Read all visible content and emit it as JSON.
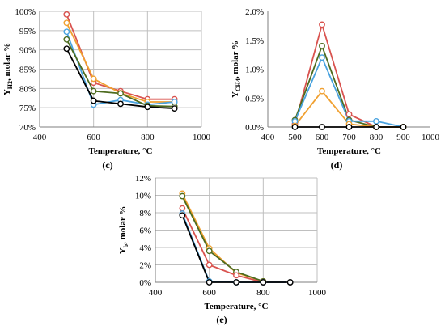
{
  "colors": {
    "red": "#d9534f",
    "orange": "#f0a030",
    "blue": "#4aa3df",
    "olive": "#4d6b1f",
    "black": "#000000"
  },
  "chart_data": [
    {
      "id": "c",
      "type": "line",
      "caption": "(c)",
      "title": "",
      "xlabel": "Temperature, °C",
      "ylabel_main": "Y",
      "ylabel_sub": "H2",
      "ylabel_rest": ", molar %",
      "xlim": [
        400,
        1000
      ],
      "ylim": [
        70,
        100
      ],
      "grid": true,
      "x_ticks": [
        "400",
        "600",
        "800",
        "1000"
      ],
      "y_ticks": [
        "70%",
        "75%",
        "80%",
        "85%",
        "90%",
        "95%",
        "100%"
      ],
      "x": [
        500,
        600,
        700,
        800,
        900
      ],
      "series": [
        {
          "color": "red",
          "values": [
            99.2,
            81.5,
            79.3,
            77.2,
            77.2
          ]
        },
        {
          "color": "orange",
          "values": [
            97.0,
            82.5,
            78.8,
            76.5,
            76.5
          ]
        },
        {
          "color": "blue",
          "values": [
            94.7,
            75.8,
            77.0,
            75.8,
            76.5
          ]
        },
        {
          "color": "olive",
          "values": [
            92.7,
            79.3,
            78.7,
            75.5,
            75.3
          ]
        },
        {
          "color": "black",
          "values": [
            90.3,
            76.8,
            76.0,
            75.2,
            74.8
          ]
        }
      ]
    },
    {
      "id": "d",
      "type": "line",
      "caption": "(d)",
      "title": "",
      "xlabel": "Temperature, °C",
      "ylabel_main": "Y",
      "ylabel_sub": "CH4",
      "ylabel_rest": ", molar %",
      "xlim": [
        400,
        1000
      ],
      "ylim": [
        0,
        2
      ],
      "grid": false,
      "x_ticks": [
        "400",
        "500",
        "600",
        "700",
        "800",
        "900",
        "1000"
      ],
      "y_ticks": [
        "0.0%",
        "0.5%",
        "1.0%",
        "1.5%",
        "2.0%"
      ],
      "x": [
        500,
        600,
        700,
        800,
        900
      ],
      "series": [
        {
          "color": "red",
          "values": [
            0.05,
            1.77,
            0.22,
            0.0,
            0.0
          ]
        },
        {
          "color": "olive",
          "values": [
            0.12,
            1.4,
            0.12,
            0.0,
            0.0
          ]
        },
        {
          "color": "blue",
          "values": [
            0.1,
            1.2,
            0.1,
            0.1,
            0.0
          ]
        },
        {
          "color": "orange",
          "values": [
            0.02,
            0.62,
            0.05,
            0.0,
            0.0
          ]
        },
        {
          "color": "black",
          "values": [
            0.0,
            0.0,
            0.0,
            0.0,
            0.0
          ]
        }
      ]
    },
    {
      "id": "e",
      "type": "line",
      "caption": "(e)",
      "title": "",
      "xlabel": "Temperature, °C",
      "ylabel_main": "Y",
      "ylabel_sub": "b",
      "ylabel_rest": ", molar %",
      "xlim": [
        400,
        1000
      ],
      "ylim": [
        0,
        12
      ],
      "grid": true,
      "x_ticks": [
        "400",
        "600",
        "800",
        "1000"
      ],
      "y_ticks": [
        "0%",
        "2%",
        "4%",
        "6%",
        "8%",
        "10%",
        "12%"
      ],
      "x": [
        500,
        600,
        700,
        800,
        900
      ],
      "series": [
        {
          "color": "orange",
          "values": [
            10.2,
            3.9,
            1.1,
            0.1,
            0.0
          ]
        },
        {
          "color": "olive",
          "values": [
            9.9,
            3.6,
            1.2,
            0.1,
            0.0
          ]
        },
        {
          "color": "red",
          "values": [
            8.5,
            2.0,
            0.8,
            0.0,
            0.0
          ]
        },
        {
          "color": "blue",
          "values": [
            7.9,
            0.1,
            0.0,
            0.0,
            0.0
          ]
        },
        {
          "color": "black",
          "values": [
            7.7,
            0.0,
            0.0,
            0.0,
            0.0
          ]
        }
      ]
    }
  ]
}
